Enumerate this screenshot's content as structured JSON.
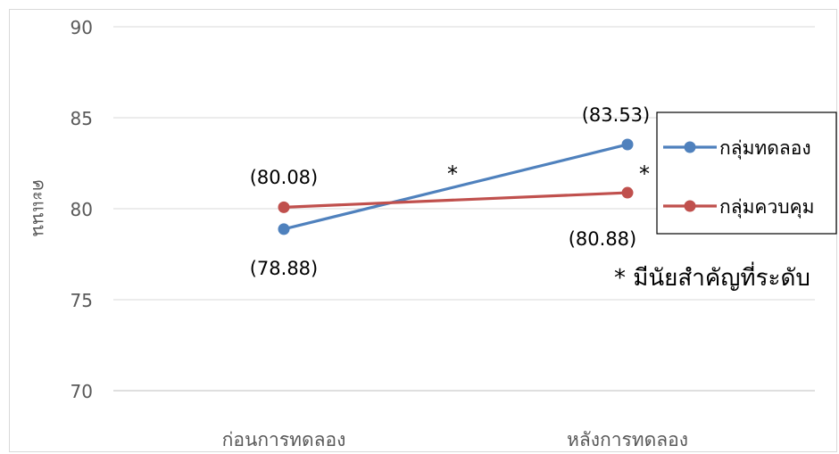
{
  "chart_data": {
    "type": "line",
    "categories": [
      "ก่อนการทดลอง",
      "หลังการทดลอง"
    ],
    "ylabel": "คะแนน",
    "ylim": [
      70,
      90
    ],
    "yticks": [
      70,
      75,
      80,
      85,
      90
    ],
    "grid": true,
    "legend_position": "right",
    "series": [
      {
        "name": "กลุ่มทดลอง",
        "values": [
          78.88,
          83.53
        ],
        "color": "#4f81bd",
        "labels": [
          "(78.88)",
          "(83.53)"
        ]
      },
      {
        "name": "กลุ่มควบคุม",
        "values": [
          80.08,
          80.88
        ],
        "color": "#c0504d",
        "labels": [
          "(80.08)",
          "(80.88)"
        ]
      }
    ],
    "annotations": {
      "marker": "*",
      "note": "* มีนัยสำคัญที่ระดับ"
    }
  }
}
